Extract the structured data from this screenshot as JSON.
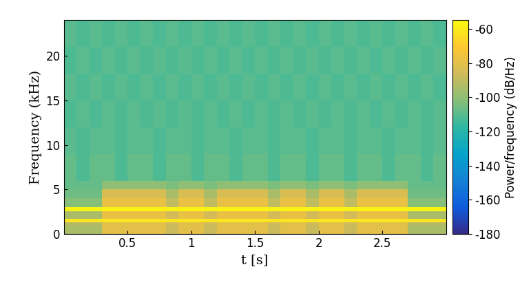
{
  "chart_data": {
    "type": "heatmap",
    "x_label": "t [s]",
    "y_label": "Frequency (kHz)",
    "xlim": [
      0,
      3
    ],
    "xticks": [
      0.5,
      1,
      1.5,
      2,
      2.5
    ],
    "ylim": [
      0,
      24
    ],
    "yticks": [
      0,
      5,
      10,
      15,
      20
    ],
    "x_edges": [
      0,
      0.1,
      0.2,
      0.3,
      0.4,
      0.5,
      0.6,
      0.7,
      0.8,
      0.9,
      1,
      1.1,
      1.2,
      1.3,
      1.4,
      1.5,
      1.6,
      1.7,
      1.8,
      1.9,
      2,
      2.1,
      2.2,
      2.3,
      2.4,
      2.5,
      2.6,
      2.7,
      2.8,
      2.9,
      3
    ],
    "y_edges": [
      0,
      1,
      1.3,
      1.7,
      2.6,
      3,
      4,
      5,
      6,
      9,
      12,
      15,
      18,
      21,
      24
    ],
    "cells": [
      [
        -95,
        -95,
        -95,
        -80,
        -80,
        -80,
        -80,
        -80,
        -88,
        -80,
        -80,
        -88,
        -80,
        -80,
        -80,
        -80,
        -88,
        -80,
        -80,
        -88,
        -80,
        -80,
        -88,
        -80,
        -80,
        -80,
        -80,
        -95,
        -95,
        -95
      ],
      [
        -92,
        -92,
        -92,
        -80,
        -80,
        -80,
        -80,
        -80,
        -86,
        -80,
        -80,
        -86,
        -80,
        -80,
        -80,
        -80,
        -86,
        -80,
        -80,
        -86,
        -80,
        -80,
        -86,
        -80,
        -80,
        -80,
        -80,
        -92,
        -92,
        -92
      ],
      [
        -62,
        -62,
        -62,
        -62,
        -62,
        -62,
        -62,
        -62,
        -62,
        -62,
        -62,
        -62,
        -62,
        -62,
        -62,
        -62,
        -62,
        -62,
        -62,
        -62,
        -62,
        -62,
        -62,
        -62,
        -62,
        -62,
        -62,
        -62,
        -62,
        -62
      ],
      [
        -95,
        -95,
        -95,
        -78,
        -78,
        -78,
        -78,
        -78,
        -86,
        -78,
        -78,
        -86,
        -78,
        -78,
        -78,
        -78,
        -86,
        -78,
        -78,
        -86,
        -78,
        -78,
        -86,
        -78,
        -78,
        -78,
        -78,
        -95,
        -95,
        -95
      ],
      [
        -58,
        -58,
        -58,
        -58,
        -58,
        -58,
        -58,
        -58,
        -58,
        -58,
        -58,
        -58,
        -58,
        -58,
        -58,
        -58,
        -58,
        -58,
        -58,
        -58,
        -58,
        -58,
        -58,
        -58,
        -58,
        -58,
        -58,
        -58,
        -58,
        -58
      ],
      [
        -102,
        -102,
        -102,
        -78,
        -78,
        -78,
        -78,
        -78,
        -90,
        -78,
        -78,
        -90,
        -78,
        -78,
        -78,
        -78,
        -90,
        -78,
        -78,
        -90,
        -78,
        -78,
        -90,
        -78,
        -78,
        -78,
        -78,
        -102,
        -102,
        -102
      ],
      [
        -106,
        -106,
        -106,
        -84,
        -84,
        -84,
        -84,
        -84,
        -95,
        -84,
        -84,
        -95,
        -84,
        -84,
        -84,
        -84,
        -95,
        -84,
        -84,
        -95,
        -84,
        -84,
        -95,
        -84,
        -84,
        -84,
        -84,
        -106,
        -106,
        -106
      ],
      [
        -108,
        -108,
        -108,
        -100,
        -100,
        -100,
        -100,
        -100,
        -104,
        -100,
        -100,
        -104,
        -100,
        -100,
        -100,
        -100,
        -104,
        -100,
        -100,
        -104,
        -100,
        -100,
        -104,
        -100,
        -100,
        -100,
        -100,
        -108,
        -108,
        -108
      ],
      [
        -108,
        -112,
        -108,
        -108,
        -112,
        -108,
        -108,
        -112,
        -108,
        -108,
        -112,
        -108,
        -108,
        -112,
        -108,
        -108,
        -112,
        -108,
        -108,
        -112,
        -108,
        -108,
        -112,
        -108,
        -108,
        -112,
        -108,
        -108,
        -112,
        -108
      ],
      [
        -110,
        -112,
        -110,
        -110,
        -112,
        -110,
        -110,
        -112,
        -110,
        -110,
        -112,
        -110,
        -110,
        -112,
        -110,
        -110,
        -112,
        -110,
        -110,
        -112,
        -110,
        -110,
        -112,
        -110,
        -110,
        -112,
        -110,
        -110,
        -112,
        -110
      ],
      [
        -112,
        -110,
        -112,
        -110,
        -112,
        -110,
        -112,
        -110,
        -112,
        -110,
        -112,
        -110,
        -112,
        -110,
        -112,
        -110,
        -112,
        -110,
        -112,
        -110,
        -112,
        -110,
        -112,
        -110,
        -112,
        -110,
        -112,
        -110,
        -112,
        -110
      ],
      [
        -110,
        -112,
        -110,
        -112,
        -110,
        -112,
        -110,
        -112,
        -110,
        -112,
        -110,
        -112,
        -110,
        -112,
        -110,
        -112,
        -110,
        -112,
        -110,
        -112,
        -110,
        -112,
        -110,
        -112,
        -110,
        -112,
        -110,
        -112,
        -110,
        -112
      ],
      [
        -112,
        -110,
        -112,
        -110,
        -112,
        -110,
        -112,
        -110,
        -112,
        -110,
        -112,
        -110,
        -112,
        -110,
        -112,
        -110,
        -112,
        -110,
        -112,
        -110,
        -112,
        -110,
        -112,
        -110,
        -112,
        -110,
        -112,
        -110,
        -112,
        -110
      ],
      [
        -110,
        -112,
        -110,
        -112,
        -110,
        -112,
        -110,
        -112,
        -110,
        -112,
        -110,
        -112,
        -110,
        -112,
        -110,
        -112,
        -110,
        -112,
        -110,
        -112,
        -110,
        -112,
        -110,
        -112,
        -110,
        -112,
        -110,
        -112,
        -110,
        -112
      ]
    ],
    "colorbar": {
      "label": "Power/frequency (dB/Hz)",
      "lim": [
        -180,
        -55
      ],
      "ticks": [
        -60,
        -80,
        -100,
        -120,
        -140,
        -160,
        -180
      ]
    }
  }
}
